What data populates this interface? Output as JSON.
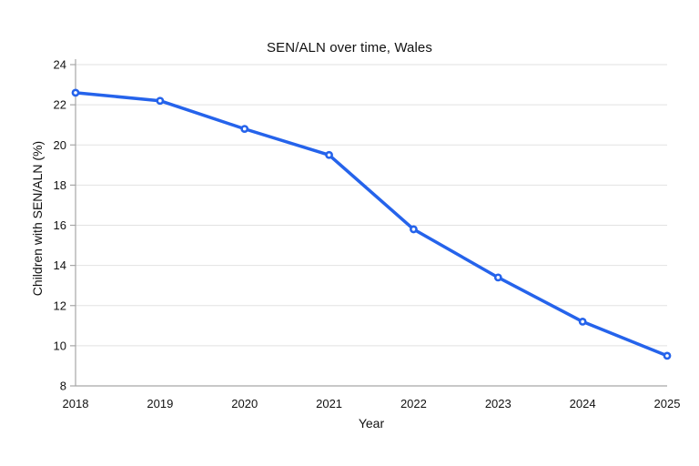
{
  "page": {
    "background": "#ffffff"
  },
  "chart_data": {
    "type": "line",
    "title": "SEN/ALN over time, Wales",
    "xlabel": "Year",
    "ylabel": "Children with SEN/ALN (%)",
    "categories": [
      "2018",
      "2019",
      "2020",
      "2021",
      "2022",
      "2023",
      "2024",
      "2025"
    ],
    "series": [
      {
        "name": "Children with SEN/ALN (%)",
        "values": [
          22.6,
          22.2,
          20.8,
          19.5,
          15.8,
          13.4,
          11.2,
          9.5
        ]
      }
    ],
    "ylim": [
      8,
      24
    ],
    "ytick_step": 2,
    "yticks": [
      8,
      10,
      12,
      14,
      16,
      18,
      20,
      22,
      24
    ],
    "grid": true,
    "legend": "none",
    "styles": {
      "line_color": "#2563eb",
      "marker": "open-circle",
      "marker_fill": "#ffffff",
      "grid_color": "#e2e2e2",
      "axis_color": "#a6a6a6",
      "text_color": "#111111"
    }
  }
}
